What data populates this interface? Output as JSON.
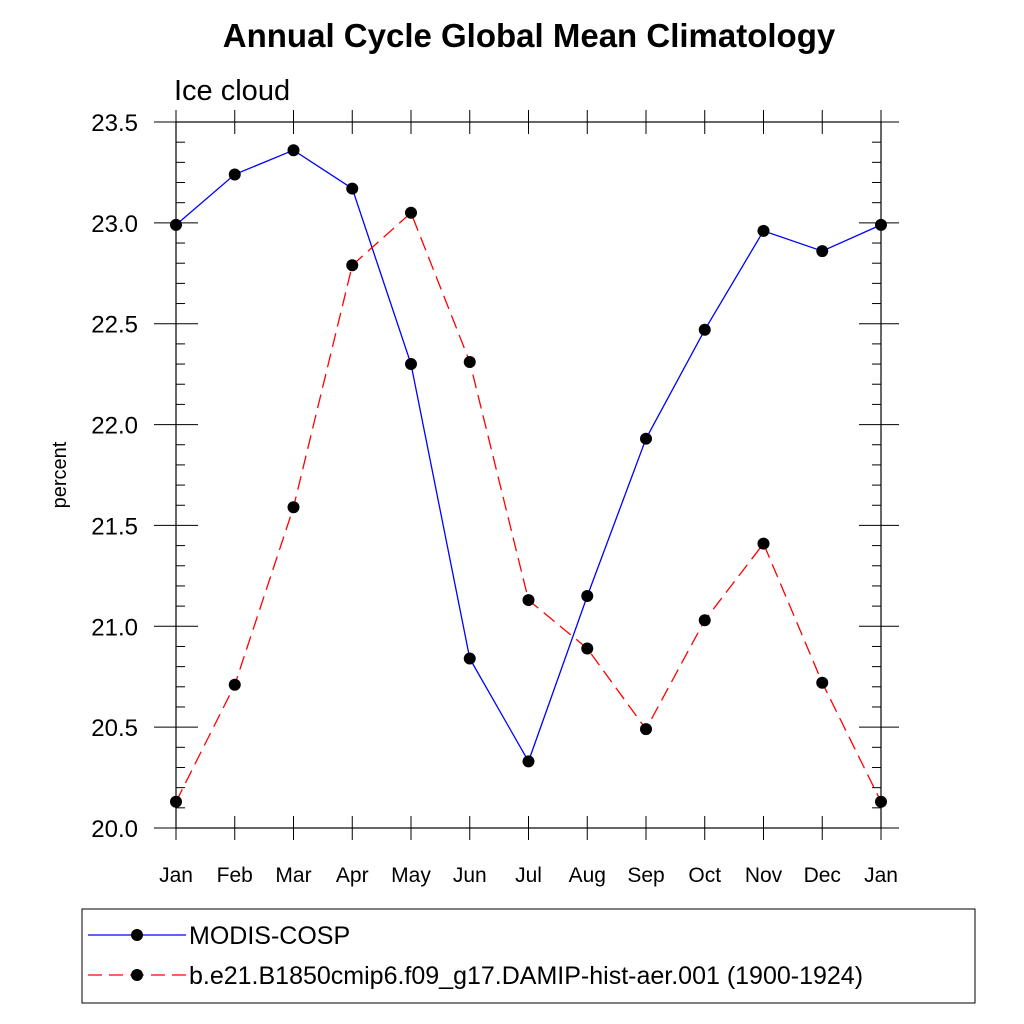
{
  "chart_data": {
    "type": "line",
    "title": "Annual Cycle Global Mean Climatology",
    "subtitle": "Ice cloud",
    "xlabel": "",
    "ylabel": "percent",
    "categories": [
      "Jan",
      "Feb",
      "Mar",
      "Apr",
      "May",
      "Jun",
      "Jul",
      "Aug",
      "Sep",
      "Oct",
      "Nov",
      "Dec",
      "Jan"
    ],
    "ylim": [
      20.0,
      23.5
    ],
    "yticks": [
      "20.0",
      "20.5",
      "21.0",
      "21.5",
      "22.0",
      "22.5",
      "23.0",
      "23.5"
    ],
    "ytick_values": [
      20.0,
      20.5,
      21.0,
      21.5,
      22.0,
      22.5,
      23.0,
      23.5
    ],
    "grid": false,
    "legend_position": "bottom",
    "series": [
      {
        "name": "MODIS-COSP",
        "color": "#0000ff",
        "line_style": "solid",
        "marker": "filled-circle",
        "values": [
          22.99,
          23.24,
          23.36,
          23.17,
          22.3,
          20.84,
          20.33,
          21.15,
          21.93,
          22.47,
          22.96,
          22.86,
          22.99
        ]
      },
      {
        "name": "b.e21.B1850cmip6.f09_g17.DAMIP-hist-aer.001 (1900-1924)",
        "color": "#ff0000",
        "line_style": "dashed",
        "marker": "filled-circle",
        "values": [
          20.13,
          20.71,
          21.59,
          22.79,
          23.05,
          22.31,
          21.13,
          20.89,
          20.49,
          21.03,
          21.41,
          20.72,
          20.13
        ]
      }
    ]
  }
}
